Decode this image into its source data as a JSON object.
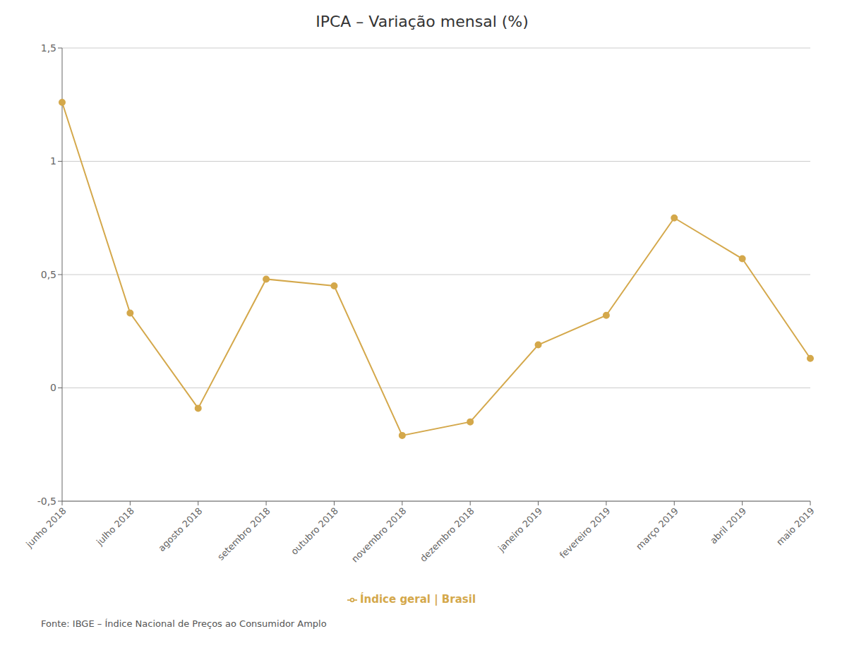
{
  "chart_data": {
    "type": "line",
    "title": "IPCA – Variação mensal (%)",
    "categories": [
      "junho 2018",
      "julho 2018",
      "agosto 2018",
      "setembro 2018",
      "outubro 2018",
      "novembro 2018",
      "dezembro 2018",
      "janeiro 2019",
      "fevereiro 2019",
      "março 2019",
      "abril 2019",
      "maio 2019"
    ],
    "series": [
      {
        "name": "Índice geral | Brasil",
        "color": "#d4a84b",
        "values": [
          1.26,
          0.33,
          -0.09,
          0.48,
          0.45,
          -0.21,
          -0.15,
          0.19,
          0.32,
          0.75,
          0.57,
          0.13
        ],
        "marker": "circle"
      }
    ],
    "ylim": [
      -0.5,
      1.5
    ],
    "yticks": [
      {
        "value": -0.5,
        "label": "-0,5"
      },
      0,
      {
        "value": 0.5,
        "label": "0,5"
      },
      1,
      {
        "value": 1.5,
        "label": "1,5"
      }
    ],
    "grid": true,
    "legend": "bottom",
    "annotations": [
      "Fonte: IBGE – Índice Nacional de Preços ao Consumidor Amplo"
    ]
  }
}
